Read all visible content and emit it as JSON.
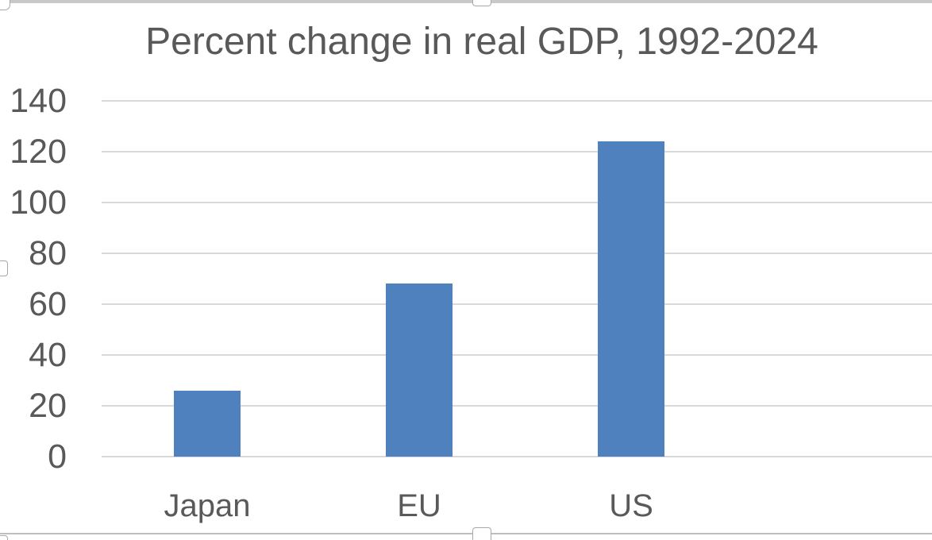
{
  "chart_data": {
    "type": "bar",
    "title": "Percent change in real GDP, 1992-2024",
    "categories": [
      "Japan",
      "EU",
      "US"
    ],
    "values": [
      26,
      68,
      124
    ],
    "ylim": [
      0,
      140
    ],
    "yticks": [
      0,
      20,
      40,
      60,
      80,
      100,
      120,
      140
    ],
    "xlabel": "",
    "ylabel": "",
    "grid": "horizontal",
    "legend": "none",
    "bar_color": "#4e81bd",
    "gridline_color": "#d9d9d9",
    "text_color": "#595959"
  },
  "selection": {
    "state": "chart-object-selected",
    "handle_icon": "resize-handle",
    "handles": [
      "top-left",
      "top-center",
      "left-middle",
      "bottom-center",
      "bottom-left"
    ]
  }
}
